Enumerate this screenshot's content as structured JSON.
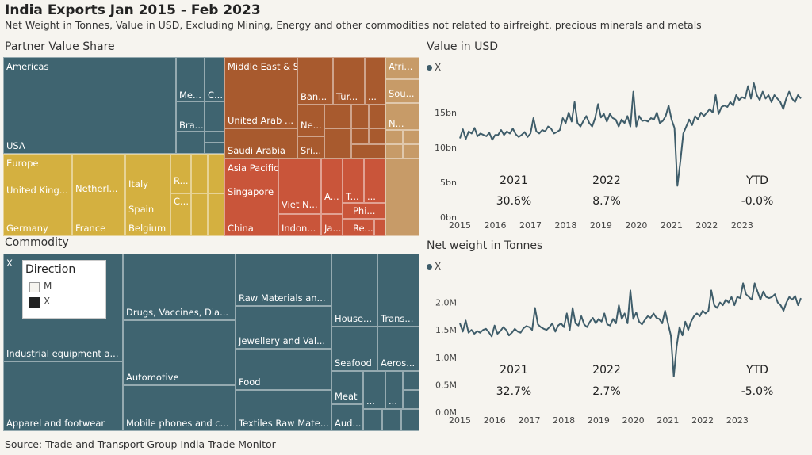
{
  "header": {
    "title": "India Exports Jan 2015 - Feb 2023",
    "subtitle": "Net Weight in Tonnes, Value in USD, Excluding Mining, Energy and other commodities not related to airfreight, precious minerals and metals"
  },
  "partner_section": {
    "title": "Partner Value Share"
  },
  "partner_labels": {
    "americas": "Americas",
    "usa": "USA",
    "me1": "Me...",
    "c1": "C...",
    "bra": "Bra...",
    "middle_east": "Middle East & South Asia",
    "ban": "Ban...",
    "tur": "Tur...",
    "uae": "United Arab ...",
    "ne": "Ne...",
    "saudi": "Saudi Arabia",
    "sri": "Sri...",
    "africa": "Afri...",
    "sou": "Sou...",
    "n": "N...",
    "europe": "Europe",
    "uk": "United King...",
    "neth": "Netherl...",
    "italy": "Italy",
    "r": "R...",
    "spain": "Spain",
    "c2": "C...",
    "germany": "Germany",
    "france": "France",
    "belgium": "Belgium",
    "asia_pacific": "Asia Pacific",
    "singapore": "Singapore",
    "vietnam": "Viet N...",
    "a": "A...",
    "ta": "T...",
    "dots": "...",
    "phi": "Phi...",
    "china": "China",
    "indon": "Indon...",
    "ja": "Ja...",
    "re": "Re..."
  },
  "commodity_section": {
    "title": "Commodity"
  },
  "commodity_labels": {
    "x": "X",
    "industrial": "Industrial equipment a...",
    "apparel": "Apparel and footwear",
    "drugs": "Drugs, Vaccines, Dia...",
    "automotive": "Automotive",
    "mobile": "Mobile phones and c...",
    "raw": "Raw Materials an...",
    "jewellery": "Jewellery and Val...",
    "food": "Food",
    "textiles": "Textiles Raw Mate...",
    "house": "House...",
    "trans": "Trans...",
    "seafood": "Seafood",
    "aeros": "Aeros...",
    "meat": "Meat",
    "aud": "Aud...",
    "dots": "..."
  },
  "direction_legend": {
    "title": "Direction",
    "items": [
      {
        "label": "M",
        "color": "#f6f4ef"
      },
      {
        "label": "X",
        "color": "#222222"
      }
    ]
  },
  "colors": {
    "americas": "#3f6470",
    "middle_east": "#a85a2e",
    "africa": "#c79b68",
    "europe": "#d4b040",
    "asia_pacific": "#c9553a",
    "commodity": "#3f6470",
    "line": "#3f5d6a"
  },
  "chart_data": [
    {
      "type": "line",
      "title": "Value in USD",
      "series": [
        {
          "name": "X"
        }
      ],
      "ylim": [
        0,
        20
      ],
      "y_ticks": [
        "0bn",
        "5bn",
        "10bn",
        "15bn"
      ],
      "x_ticks": [
        "2015",
        "2016",
        "2017",
        "2018",
        "2019",
        "2020",
        "2021",
        "2022",
        "2023"
      ],
      "values": [
        11.3,
        12.6,
        11.2,
        12.3,
        12.0,
        12.8,
        11.6,
        12.0,
        11.8,
        11.6,
        12.1,
        11.1,
        11.8,
        11.8,
        12.5,
        11.8,
        12.3,
        12.0,
        12.7,
        11.9,
        11.5,
        11.8,
        12.2,
        11.5,
        12.0,
        14.2,
        12.3,
        12.0,
        12.5,
        12.3,
        13.0,
        12.7,
        12.0,
        12.2,
        12.5,
        14.2,
        13.5,
        15.0,
        13.7,
        16.5,
        13.5,
        13.0,
        13.8,
        14.5,
        13.5,
        13.0,
        14.2,
        16.2,
        14.3,
        14.8,
        13.7,
        14.8,
        14.2,
        14.0,
        13.0,
        14.0,
        13.5,
        14.5,
        13.0,
        18.0,
        13.0,
        14.5,
        13.8,
        13.9,
        13.7,
        14.2,
        14.0,
        15.0,
        13.5,
        13.8,
        14.5,
        16.0,
        14.0,
        12.8,
        4.5,
        8.0,
        12.0,
        13.0,
        14.0,
        13.2,
        14.5,
        14.0,
        15.0,
        14.5,
        15.0,
        15.5,
        15.0,
        17.5,
        14.8,
        15.8,
        16.0,
        15.8,
        16.5,
        16.0,
        17.5,
        16.8,
        17.2,
        17.0,
        18.8,
        17.0,
        19.2,
        17.5,
        16.8,
        18.0,
        17.0,
        17.5,
        16.5,
        17.5,
        17.0,
        16.5,
        15.5,
        17.0,
        18.0,
        17.0,
        16.5,
        17.5,
        17.0
      ],
      "kpis": [
        {
          "label": "2021",
          "value": "30.6%"
        },
        {
          "label": "2022",
          "value": "8.7%"
        },
        {
          "label": "YTD",
          "value": "-0.0%"
        }
      ]
    },
    {
      "type": "line",
      "title": "Net weight in Tonnes",
      "series": [
        {
          "name": "X"
        }
      ],
      "ylim": [
        0,
        2.5
      ],
      "y_ticks": [
        "0.0M",
        "0.5M",
        "1.0M",
        "1.5M",
        "2.0M"
      ],
      "x_ticks": [
        "2015",
        "2016",
        "2017",
        "2018",
        "2019",
        "2020",
        "2021",
        "2022",
        "2023"
      ],
      "values": [
        1.62,
        1.47,
        1.67,
        1.45,
        1.5,
        1.43,
        1.48,
        1.45,
        1.5,
        1.52,
        1.46,
        1.38,
        1.58,
        1.43,
        1.48,
        1.55,
        1.5,
        1.4,
        1.45,
        1.52,
        1.47,
        1.45,
        1.53,
        1.57,
        1.55,
        1.5,
        1.9,
        1.6,
        1.55,
        1.52,
        1.5,
        1.55,
        1.62,
        1.47,
        1.58,
        1.62,
        1.55,
        1.8,
        1.5,
        1.9,
        1.62,
        1.58,
        1.75,
        1.6,
        1.55,
        1.65,
        1.72,
        1.62,
        1.7,
        1.65,
        1.8,
        1.6,
        1.58,
        1.7,
        1.62,
        1.95,
        1.7,
        1.8,
        1.62,
        2.22,
        1.7,
        1.82,
        1.65,
        1.6,
        1.68,
        1.75,
        1.72,
        1.8,
        1.72,
        1.7,
        1.62,
        1.85,
        1.62,
        1.4,
        0.65,
        1.2,
        1.55,
        1.4,
        1.65,
        1.5,
        1.65,
        1.75,
        1.8,
        1.75,
        1.85,
        1.8,
        1.85,
        2.22,
        1.95,
        1.9,
        2.0,
        1.95,
        2.05,
        2.0,
        2.1,
        1.95,
        2.1,
        2.08,
        2.35,
        2.15,
        2.1,
        2.05,
        2.35,
        2.2,
        2.05,
        2.2,
        2.1,
        2.08,
        2.1,
        2.15,
        2.0,
        1.95,
        1.85,
        2.0,
        2.1,
        2.05,
        2.12,
        1.95,
        2.08
      ],
      "kpis": [
        {
          "label": "2021",
          "value": "32.7%"
        },
        {
          "label": "2022",
          "value": "2.7%"
        },
        {
          "label": "YTD",
          "value": "-5.0%"
        }
      ]
    }
  ],
  "footer": {
    "source": "Source: Trade and Transport Group India Trade Monitor"
  }
}
